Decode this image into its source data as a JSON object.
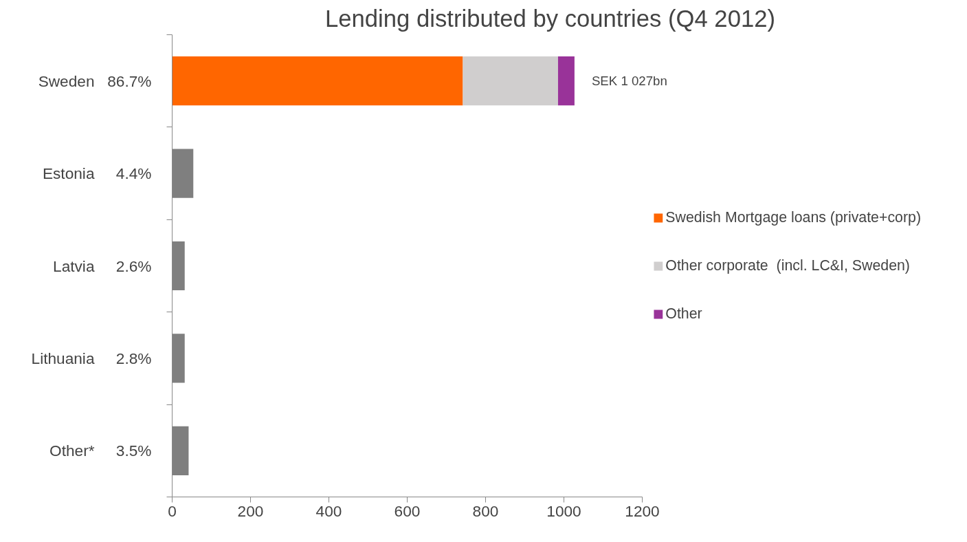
{
  "chart_data": {
    "type": "bar",
    "orientation": "horizontal",
    "stacked": true,
    "title": "Lending distributed by countries (Q4 2012)",
    "categories": [
      "Sweden",
      "Estonia",
      "Latvia",
      "Lithuania",
      "Other*"
    ],
    "series": [
      {
        "name": "Swedish Mortgage loans (private+corp)",
        "color": "#ff6600",
        "values": [
          742,
          null,
          null,
          null,
          null
        ]
      },
      {
        "name": "Other corporate  (incl. LC&I, Sweden)",
        "color": "#d0cece",
        "values": [
          243,
          null,
          null,
          null,
          null
        ]
      },
      {
        "name": "Other",
        "color": "#993399",
        "values": [
          42,
          null,
          null,
          null,
          null
        ]
      },
      {
        "color": "#7f7f7f",
        "values": [
          null,
          54,
          32,
          32,
          42
        ]
      }
    ],
    "xlim": [
      0,
      1200
    ],
    "xticks": [
      0,
      200,
      400,
      600,
      800,
      1000,
      1200
    ],
    "grid": false,
    "legend": "right",
    "annotations": [
      "86.7%",
      "4.4%",
      "2.6%",
      "2.8%",
      "3.5%",
      {
        "text": "SEK 1 027bn",
        "x": 1027,
        "y": "Sweden"
      }
    ]
  }
}
